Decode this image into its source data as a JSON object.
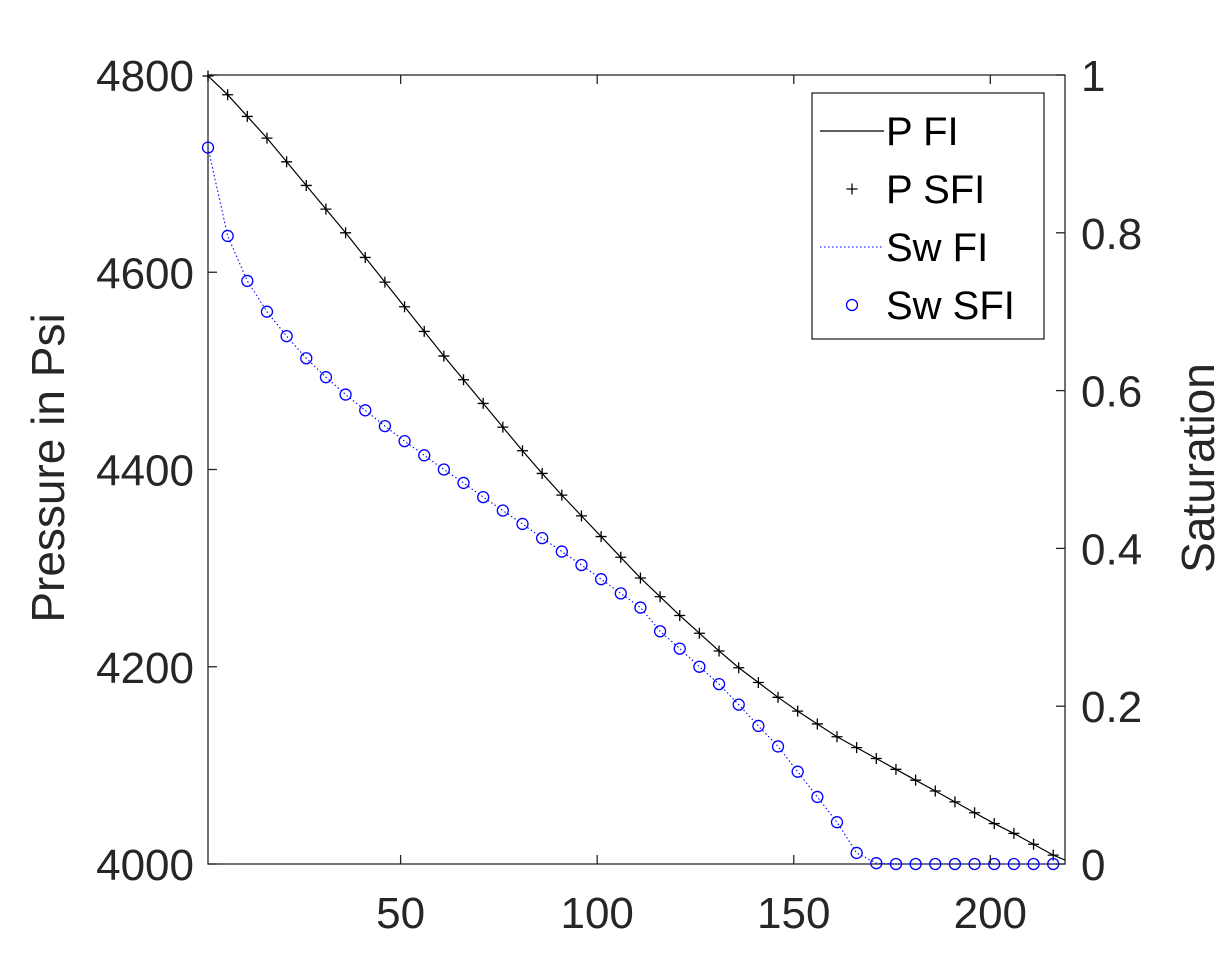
{
  "chart_data": {
    "type": "line",
    "title": "",
    "xlabel": "",
    "ylabel_left": "Pressure in Psi",
    "ylabel_right": "Saturation",
    "xlim": [
      1,
      219
    ],
    "ylim_left": [
      4000,
      4800
    ],
    "ylim_right": [
      0,
      1
    ],
    "xticks": [
      50,
      100,
      150,
      200
    ],
    "yticks_left": [
      4000,
      4200,
      4400,
      4600,
      4800
    ],
    "yticks_right": [
      0,
      0.2,
      0.4,
      0.6,
      0.8,
      1
    ],
    "legend_position": "top-right",
    "series": [
      {
        "name": "P FI",
        "axis": "left",
        "style": "solid-line",
        "color": "#000000",
        "x": [
          1,
          6,
          11,
          16,
          21,
          26,
          31,
          36,
          41,
          46,
          51,
          56,
          61,
          66,
          71,
          76,
          81,
          86,
          91,
          96,
          101,
          106,
          111,
          116,
          121,
          126,
          131,
          136,
          141,
          146,
          151,
          156,
          161,
          166,
          171,
          176,
          181,
          186,
          191,
          196,
          201,
          206,
          211,
          216,
          219
        ],
        "y": [
          4799,
          4780,
          4758,
          4736,
          4712,
          4688,
          4664,
          4640,
          4615,
          4590,
          4565,
          4540,
          4515,
          4491,
          4467,
          4443,
          4419,
          4396,
          4374,
          4353,
          4332,
          4311,
          4290,
          4271,
          4252,
          4234,
          4216,
          4199,
          4184,
          4169,
          4155,
          4142,
          4129,
          4118,
          4107,
          4096,
          4085,
          4074,
          4063,
          4052,
          4041,
          4031,
          4020,
          4009,
          4004
        ]
      },
      {
        "name": "P SFI",
        "axis": "left",
        "style": "plus-markers",
        "color": "#000000",
        "x": [
          1,
          6,
          11,
          16,
          21,
          26,
          31,
          36,
          41,
          46,
          51,
          56,
          61,
          66,
          71,
          76,
          81,
          86,
          91,
          96,
          101,
          106,
          111,
          116,
          121,
          126,
          131,
          136,
          141,
          146,
          151,
          156,
          161,
          166,
          171,
          176,
          181,
          186,
          191,
          196,
          201,
          206,
          211,
          216
        ],
        "y": [
          4799,
          4780,
          4758,
          4736,
          4712,
          4688,
          4664,
          4640,
          4615,
          4590,
          4565,
          4540,
          4515,
          4491,
          4467,
          4443,
          4419,
          4396,
          4374,
          4353,
          4332,
          4311,
          4290,
          4271,
          4252,
          4234,
          4216,
          4199,
          4184,
          4169,
          4155,
          4142,
          4129,
          4118,
          4107,
          4096,
          4085,
          4074,
          4063,
          4052,
          4041,
          4031,
          4020,
          4009
        ]
      },
      {
        "name": "Sw FI",
        "axis": "right",
        "style": "dotted-line",
        "color": "#0000ff",
        "x": [
          1,
          6,
          11,
          16,
          21,
          26,
          31,
          36,
          41,
          46,
          51,
          56,
          61,
          66,
          71,
          76,
          81,
          86,
          91,
          96,
          101,
          106,
          111,
          116,
          121,
          126,
          131,
          136,
          141,
          146,
          151,
          156,
          161,
          166,
          171,
          176,
          181,
          186,
          191,
          196,
          201,
          206,
          211,
          216
        ],
        "y": [
          0.908,
          0.796,
          0.739,
          0.7,
          0.669,
          0.641,
          0.617,
          0.595,
          0.575,
          0.555,
          0.536,
          0.518,
          0.5,
          0.483,
          0.465,
          0.448,
          0.431,
          0.413,
          0.396,
          0.379,
          0.361,
          0.343,
          0.325,
          0.295,
          0.273,
          0.25,
          0.228,
          0.202,
          0.175,
          0.149,
          0.117,
          0.085,
          0.053,
          0.014,
          0.001,
          0.0,
          0.0,
          0.0,
          0.0,
          0.0,
          0.0,
          0.0,
          0.0,
          0.0
        ]
      },
      {
        "name": "Sw SFI",
        "axis": "right",
        "style": "circle-markers",
        "color": "#0000ff",
        "x": [
          1,
          6,
          11,
          16,
          21,
          26,
          31,
          36,
          41,
          46,
          51,
          56,
          61,
          66,
          71,
          76,
          81,
          86,
          91,
          96,
          101,
          106,
          111,
          116,
          121,
          126,
          131,
          136,
          141,
          146,
          151,
          156,
          161,
          166,
          171,
          176,
          181,
          186,
          191,
          196,
          201,
          206,
          211,
          216
        ],
        "y": [
          0.908,
          0.796,
          0.739,
          0.7,
          0.669,
          0.641,
          0.617,
          0.595,
          0.575,
          0.555,
          0.536,
          0.518,
          0.5,
          0.483,
          0.465,
          0.448,
          0.431,
          0.413,
          0.396,
          0.379,
          0.361,
          0.343,
          0.325,
          0.295,
          0.273,
          0.25,
          0.228,
          0.202,
          0.175,
          0.149,
          0.117,
          0.085,
          0.053,
          0.014,
          0.001,
          0.0,
          0.0,
          0.0,
          0.0,
          0.0,
          0.0,
          0.0,
          0.0,
          0.0
        ]
      }
    ]
  }
}
